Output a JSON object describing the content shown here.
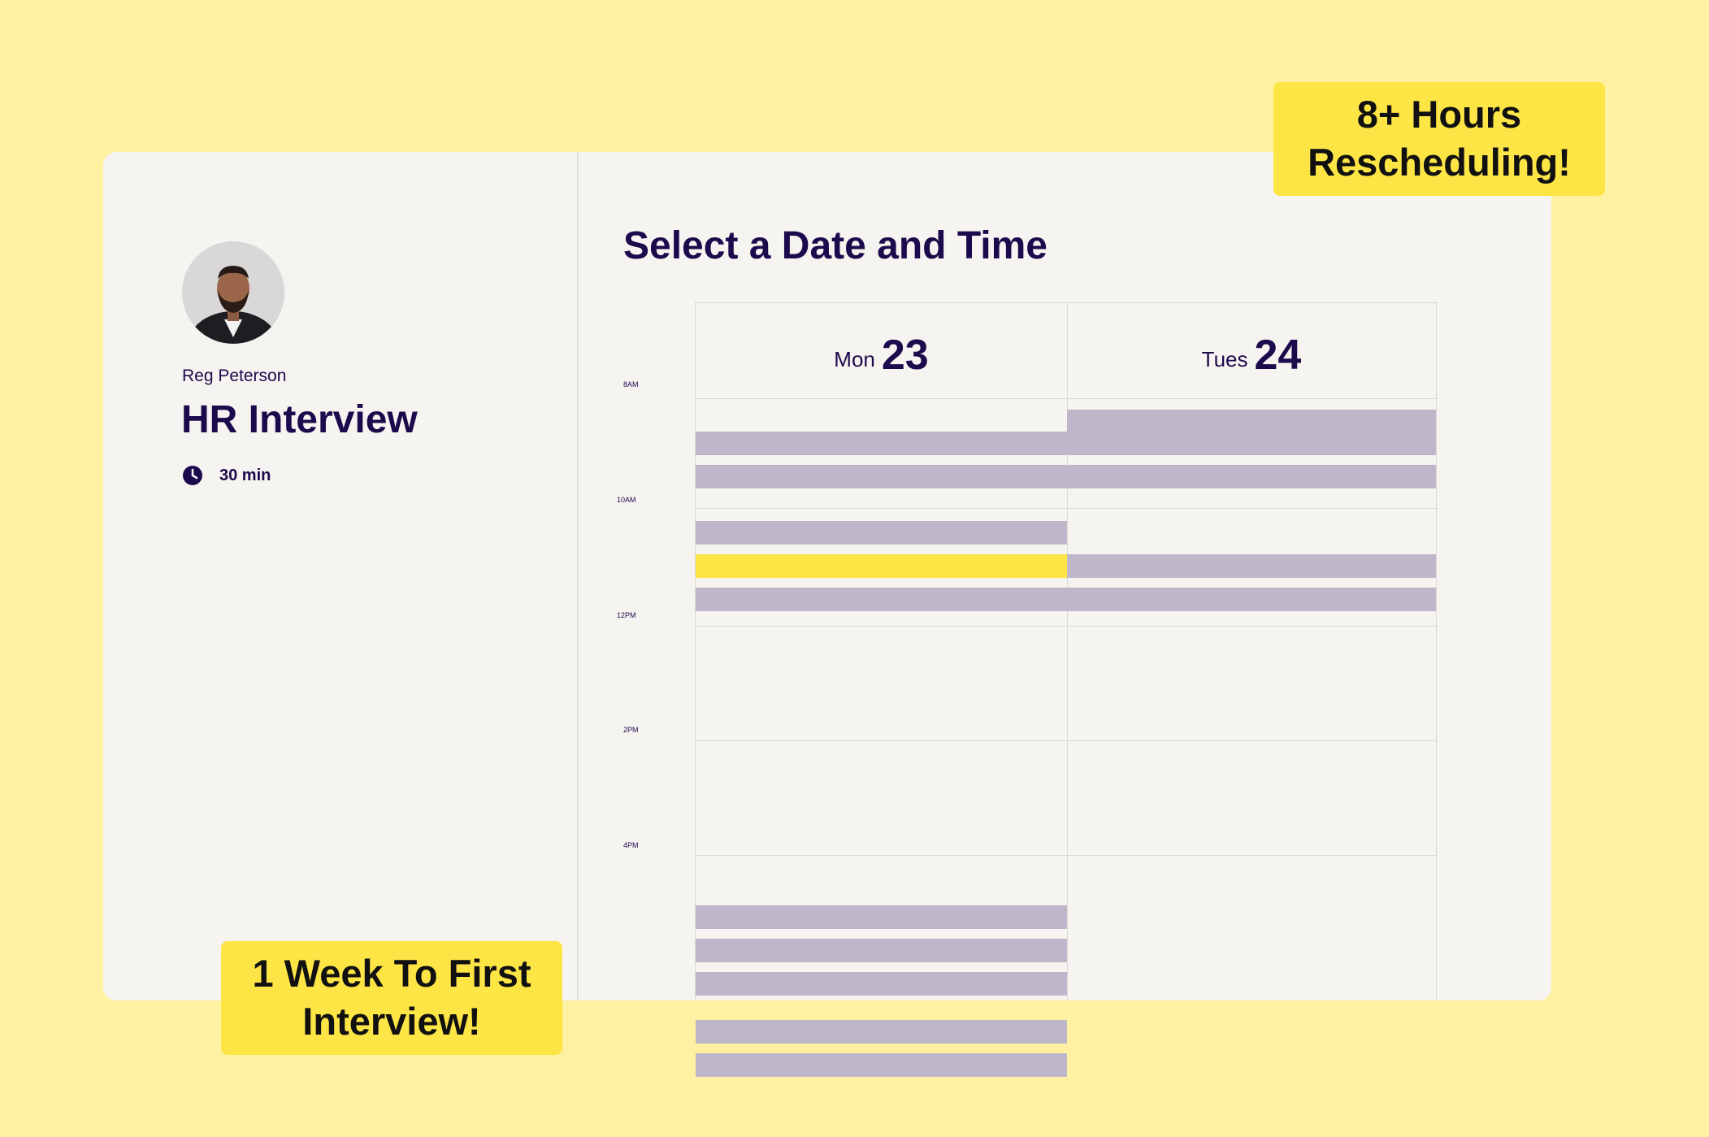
{
  "host": {
    "name": "Reg Peterson",
    "avatar_icon": "avatar-photo"
  },
  "event": {
    "title": "HR Interview",
    "duration": "30 min",
    "duration_icon": "clock-icon"
  },
  "scheduler": {
    "title": "Select a Date and Time",
    "time_labels": [
      "8AM",
      "10AM",
      "12PM",
      "2PM",
      "4PM"
    ],
    "days": [
      {
        "name": "Mon",
        "number": "23"
      },
      {
        "name": "Tues",
        "number": "24"
      }
    ],
    "slots": {
      "mon": [
        "8:30",
        "9:00",
        "9:30",
        "10:15",
        "10:45",
        "11:15",
        "3:00",
        "3:30",
        "4:00",
        "4:45",
        "5:15"
      ],
      "mon_selected": "10:45",
      "tues": [
        "8:00",
        "8:30",
        "9:00",
        "10:45",
        "11:15"
      ]
    }
  },
  "badges": {
    "top_line1": "8+ Hours",
    "top_line2": "Rescheduling!",
    "bottom_line1": "1 Week To First",
    "bottom_line2": "Interview!"
  },
  "colors": {
    "background": "#fef1a2",
    "card": "#f6f4f0",
    "primary_text": "#1b0a4c",
    "slot_busy": "#bfb7c9",
    "accent_yellow": "#fde545"
  }
}
